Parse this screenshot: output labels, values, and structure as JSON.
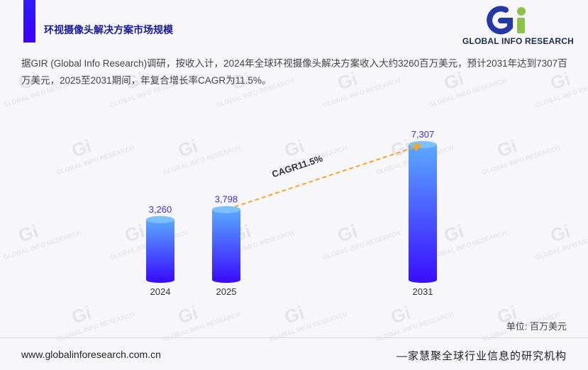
{
  "header": {
    "title": "环视摄像头解决方案市场规模",
    "brand_colors": {
      "accent": "#3b00ff",
      "logo_blue": "#2438a6",
      "logo_green": "#8bc34a"
    }
  },
  "logo": {
    "mark_text": "Gi",
    "brand_name": "GLOBAL INFO RESEARCH",
    "icon": "gir-logo-icon"
  },
  "summary": "据GIR (Global Info Research)调研，按收入计，2024年全球环视摄像头解决方案收入大约3260百万美元，预计2031年达到7307百万美元，2025至2031期间，年复合增长率CAGR为11.5%。",
  "chart_data": {
    "type": "bar",
    "title": "",
    "categories": [
      "2024",
      "2025",
      "2031"
    ],
    "values": [
      3260,
      3798,
      7307
    ],
    "value_labels": [
      "3,260",
      "3,798",
      "7,307"
    ],
    "ylim": [
      0,
      7307
    ],
    "xlabel": "",
    "ylabel": "",
    "unit_label": "单位: 百万美元",
    "grid": false,
    "annotation": {
      "text": "CAGR11.5%",
      "from": "2025",
      "to": "2031",
      "style": "dashed-arrow",
      "color": "#f5a623"
    },
    "bar_color_top": "#5aa9ff",
    "bar_color_bottom": "#3a10ff",
    "label_color": "#3b2fd8"
  },
  "footer": {
    "url": "www.globalinforesearch.com.cn",
    "slogan": "—家慧聚全球行业信息的研究机构"
  },
  "watermark": {
    "text": "GLOBAL INFO RESEARCH",
    "mark_text": "Gi"
  }
}
